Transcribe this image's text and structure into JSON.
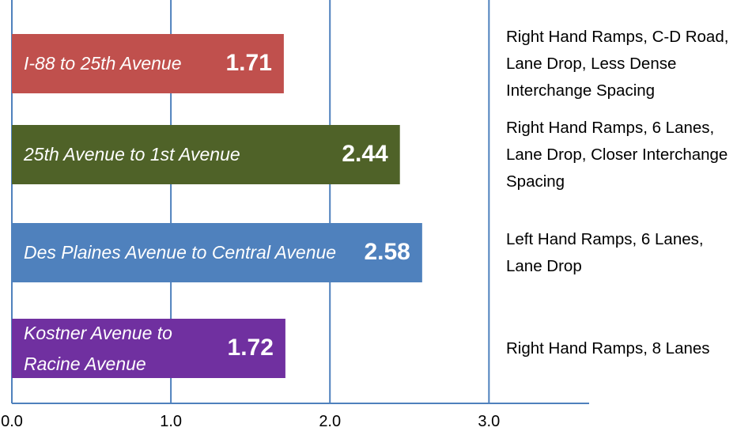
{
  "chart_data": {
    "type": "bar",
    "orientation": "horizontal",
    "categories": [
      "I-88 to 25th Avenue",
      "25th Avenue to 1st Avenue",
      "Des Plaines Avenue to Central Avenue",
      "Kostner Avenue to Racine Avenue"
    ],
    "values": [
      1.71,
      2.44,
      2.58,
      1.72
    ],
    "colors": [
      "#c0504d",
      "#4f6228",
      "#4f81bd",
      "#7030a0"
    ],
    "annotations": [
      "Right Hand Ramps, C-D Road, Lane Drop, Less Dense Interchange Spacing",
      "Right Hand Ramps, 6 Lanes, Lane Drop, Closer Interchange Spacing",
      "Left Hand Ramps, 6 Lanes, Lane Drop",
      "Right Hand Ramps, 8 Lanes"
    ],
    "xlim": [
      0,
      3.6
    ],
    "xticks": [
      {
        "value": 0,
        "label": "0.0"
      },
      {
        "value": 1,
        "label": "1.0"
      },
      {
        "value": 2,
        "label": "2.0"
      },
      {
        "value": 3,
        "label": "3.0"
      }
    ],
    "grid": true
  }
}
